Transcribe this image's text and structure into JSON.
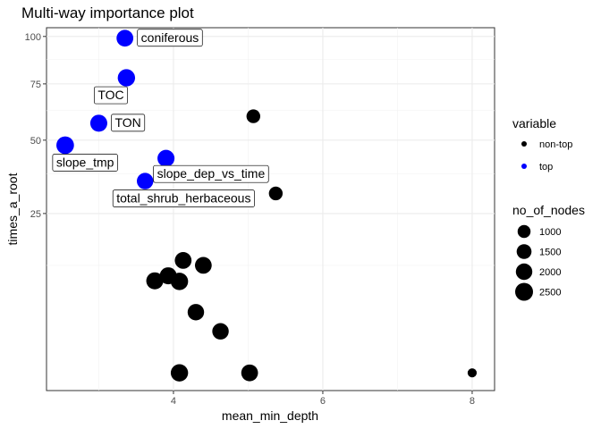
{
  "chart_data": {
    "type": "scatter",
    "title": "Multi-way importance plot",
    "xlabel": "mean_min_depth",
    "ylabel": "times_a_root",
    "xlim": [
      2.3,
      8.3
    ],
    "y_scale": "sqrt",
    "ylim": [
      0,
      105
    ],
    "x_ticks": [
      4,
      6,
      8
    ],
    "y_ticks": [
      25,
      50,
      75,
      100
    ],
    "grid": true,
    "legend_position": "right",
    "colors": {
      "non-top": "#000000",
      "top": "#0000ff"
    },
    "legend": {
      "color_title": "variable",
      "color_entries": [
        "non-top",
        "top"
      ],
      "size_title": "no_of_nodes",
      "size_entries": [
        1000,
        1500,
        2000,
        2500
      ]
    },
    "points": [
      {
        "label": "coniferous",
        "x": 3.35,
        "y": 99,
        "variable": "top",
        "no_of_nodes": 2100,
        "label_pos": "right"
      },
      {
        "label": "TOC",
        "x": 3.37,
        "y": 78,
        "variable": "top",
        "no_of_nodes": 2300,
        "label_pos": "below-left"
      },
      {
        "label": "TON",
        "x": 3.0,
        "y": 57,
        "variable": "top",
        "no_of_nodes": 2200,
        "label_pos": "right"
      },
      {
        "label": "slope_tmp",
        "x": 2.55,
        "y": 48,
        "variable": "top",
        "no_of_nodes": 2400,
        "label_pos": "below"
      },
      {
        "label": "slope_dep_vs_time",
        "x": 3.9,
        "y": 43,
        "variable": "top",
        "no_of_nodes": 2200,
        "label_pos": "below-right"
      },
      {
        "label": "total_shrub_herbaceous",
        "x": 3.62,
        "y": 35,
        "variable": "top",
        "no_of_nodes": 2000,
        "label_pos": "below-left"
      },
      {
        "label": "",
        "x": 5.07,
        "y": 60,
        "variable": "non-top",
        "no_of_nodes": 1200
      },
      {
        "label": "",
        "x": 5.37,
        "y": 31,
        "variable": "non-top",
        "no_of_nodes": 1200
      },
      {
        "label": "",
        "x": 4.13,
        "y": 13.5,
        "variable": "non-top",
        "no_of_nodes": 2100
      },
      {
        "label": "",
        "x": 4.4,
        "y": 12.5,
        "variable": "non-top",
        "no_of_nodes": 2100
      },
      {
        "label": "",
        "x": 3.93,
        "y": 10.5,
        "variable": "non-top",
        "no_of_nodes": 2200
      },
      {
        "label": "",
        "x": 3.75,
        "y": 9.6,
        "variable": "non-top",
        "no_of_nodes": 2200
      },
      {
        "label": "",
        "x": 4.08,
        "y": 9.5,
        "variable": "non-top",
        "no_of_nodes": 2300
      },
      {
        "label": "",
        "x": 4.3,
        "y": 4.9,
        "variable": "non-top",
        "no_of_nodes": 2000
      },
      {
        "label": "",
        "x": 4.63,
        "y": 2.8,
        "variable": "non-top",
        "no_of_nodes": 2000
      },
      {
        "label": "",
        "x": 4.08,
        "y": 0.25,
        "variable": "non-top",
        "no_of_nodes": 2300
      },
      {
        "label": "",
        "x": 5.02,
        "y": 0.25,
        "variable": "non-top",
        "no_of_nodes": 2100
      },
      {
        "label": "",
        "x": 8.0,
        "y": 0.25,
        "variable": "non-top",
        "no_of_nodes": 300
      }
    ]
  }
}
